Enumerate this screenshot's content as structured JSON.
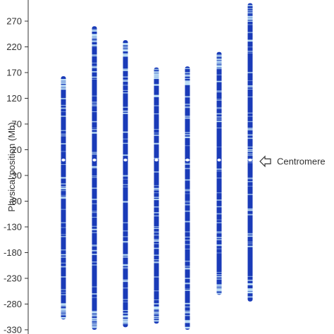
{
  "chart_data": {
    "type": "other",
    "ylabel": "Physical position (Mb)",
    "ylim": [
      -330,
      300
    ],
    "yticks": [
      270,
      220,
      170,
      120,
      70,
      20,
      -30,
      -80,
      -130,
      -180,
      -230,
      -280,
      -330
    ],
    "grid": false,
    "legend": "none",
    "centromere_label": "Centromere",
    "bar_color": "#1a3bb8",
    "band_color": "#bfe0f5",
    "chromosomes": [
      {
        "start": -310,
        "end": 163
      },
      {
        "start": -330,
        "end": 260
      },
      {
        "start": -325,
        "end": 233
      },
      {
        "start": -318,
        "end": 180
      },
      {
        "start": -330,
        "end": 182
      },
      {
        "start": -262,
        "end": 210
      },
      {
        "start": -275,
        "end": 305
      }
    ]
  }
}
